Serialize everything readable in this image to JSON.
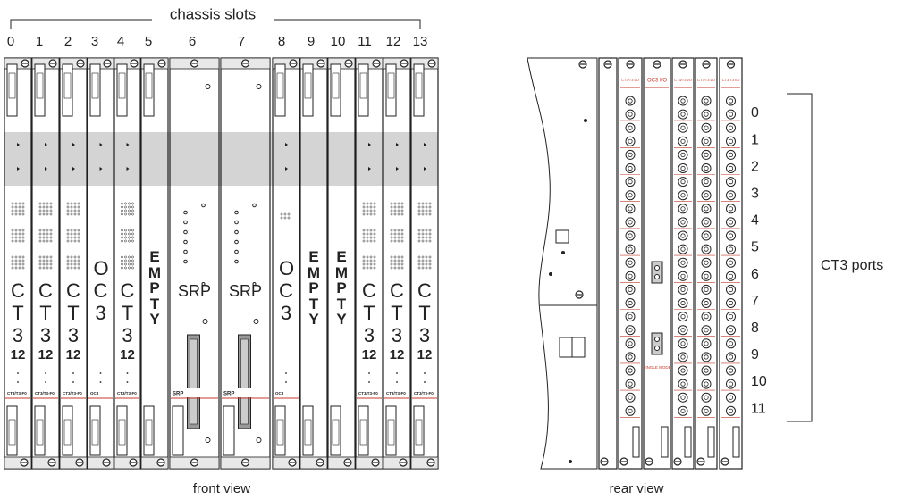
{
  "header": {
    "title": "chassis slots"
  },
  "slots": [
    {
      "number": 0,
      "label": "CT3",
      "sub": "12",
      "tag": "CT3/T3-F0"
    },
    {
      "number": 1,
      "label": "CT3",
      "sub": "12",
      "tag": "CT3/T3-F0"
    },
    {
      "number": 2,
      "label": "CT3",
      "sub": "12",
      "tag": "CT3/T3-F0"
    },
    {
      "number": 3,
      "label": "OC3",
      "tag": "OC3"
    },
    {
      "number": 4,
      "label": "CT3",
      "sub": "12",
      "tag": "CT3/T3-F0"
    },
    {
      "number": 5,
      "label": "EMPTY"
    },
    {
      "number": 6,
      "label": "SRP",
      "tag": "SRP"
    },
    {
      "number": 7,
      "label": "SRP",
      "tag": "SRP"
    },
    {
      "number": 8,
      "label": "OC3",
      "tag": "OC3"
    },
    {
      "number": 9,
      "label": "EMPTY"
    },
    {
      "number": 10,
      "label": "EMPTY"
    },
    {
      "number": 11,
      "label": "CT3",
      "sub": "12",
      "tag": "CT3/T3-F0"
    },
    {
      "number": 12,
      "label": "CT3",
      "sub": "12",
      "tag": "CT3/T3-F0"
    },
    {
      "number": 13,
      "label": "CT3",
      "sub": "12",
      "tag": "CT3/T3-F0"
    }
  ],
  "front_view": "front view",
  "rear_view": "rear view",
  "rear": {
    "cards": [
      {
        "label": "CT3/T3 I/O"
      },
      {
        "label": "OC3 I/O"
      },
      {
        "label": "CT3/T3 I/O"
      },
      {
        "label": "CT3/T3 I/O"
      },
      {
        "label": "CT3/T3 I/O"
      }
    ],
    "single_mode": "SINGLE MODE"
  },
  "ports": {
    "title": "CT3 ports",
    "numbers": [
      0,
      1,
      2,
      3,
      4,
      5,
      6,
      7,
      8,
      9,
      10,
      11
    ]
  }
}
